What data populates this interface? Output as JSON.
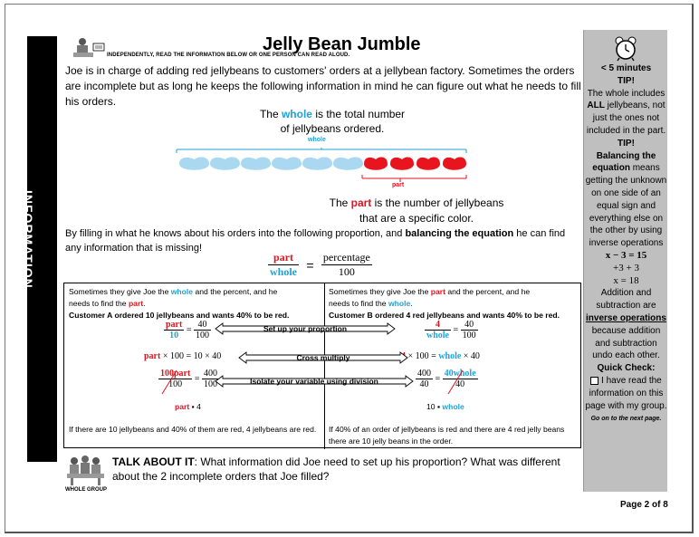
{
  "side_label": "INFORMATION",
  "title": "Jelly Bean Jumble",
  "instruction": "INDEPENDENTLY, READ THE INFORMATION BELOW OR ONE PERSON CAN READ ALOUD.",
  "intro": "Joe is in charge of adding red jellybeans to customers' orders at a jellybean factory.  Sometimes the orders are incomplete but as long he keeps the following information in mind he can figure out what he needs to fill his orders.",
  "whole_def": {
    "pre": "The ",
    "word": "whole",
    "post1": " is the total number",
    "line2": "of jellybeans ordered."
  },
  "bean_labels": {
    "whole": "whole",
    "part": "part"
  },
  "beans": {
    "blue_count": 6,
    "red_count": 4,
    "blue_color": "#a9d8f0",
    "red_color": "#e8141e"
  },
  "part_def": {
    "pre": "The ",
    "word": "part",
    "post1": " is the number of jellybeans",
    "line2": "that are a specific color."
  },
  "fill": {
    "pre": "By filling in what he knows about his orders into the following proportion, and ",
    "bold": "balancing the equation",
    "post": " he can find any information that is missing!"
  },
  "proportion": {
    "part": "part",
    "whole": "whole",
    "percentage": "percentage",
    "hundred": "100",
    "equals": "="
  },
  "left_box": {
    "line1_pre": "Sometimes they give Joe the ",
    "line1_word": "whole",
    "line1_post": " and the percent, and he",
    "line2_pre": "needs to find the ",
    "line2_word": "part",
    "line2_post": ".",
    "customer": "Customer A ordered 10 jellybeans and wants 40% to be red.",
    "eq1_num": "part",
    "eq1_den": "10",
    "eq1_num2": "40",
    "eq1_den2": "100",
    "eq2_a": "part",
    "eq2_b": " × 100 = 10  × 40",
    "eq3_num": "100part",
    "eq3_den": "100",
    "eq3_num2": "400",
    "eq3_den2": "100",
    "result_a": "part",
    "result_b": " ▪ 4",
    "conclusion": "If there are 10 jellybeans and 40% of them are red, 4 jellybeans are red."
  },
  "right_box": {
    "line1_pre": "Sometimes they give Joe the ",
    "line1_word": "part",
    "line1_post": " and the percent, and he",
    "line2_pre": "needs to find the ",
    "line2_word": "whole",
    "line2_post": ".",
    "customer": "Customer B ordered 4 red jellybeans and wants 40% to be red.",
    "eq1_num": "4",
    "eq1_den": "whole",
    "eq1_num2": "40",
    "eq1_den2": "100",
    "eq2_a": "4",
    "eq2_b": " × 100 = ",
    "eq2_c": "whole",
    "eq2_d": "  × 40",
    "eq3_num": "400",
    "eq3_den": "40",
    "eq3_num2": "40whole",
    "eq3_den2": "40",
    "result_a": "10 ▪ ",
    "result_b": "whole",
    "conclusion": "If 40% of an order of jellybeans is red and there are 4 red jelly beans there are 10 jelly beans in the order."
  },
  "arrows": {
    "a1": "Set up your proportion",
    "a2": "Cross multiply",
    "a3": "Isolate your variable using division"
  },
  "talk": {
    "bold": "TALK ABOUT IT",
    "text": ": What information did Joe need to set up his proportion?  What was different about the 2 incomplete orders that Joe filled?"
  },
  "whole_group": "WHOLE GROUP",
  "sidebar": {
    "time": "< 5 minutes",
    "tip1_head": "TIP!",
    "tip1_a": "The whole includes ",
    "tip1_b": "ALL",
    "tip1_c": " jellybeans, not just the ones not included in the part.",
    "tip2_head": "TIP!",
    "tip2_bold": "Balancing the equation",
    "tip2_rest": " means getting the unknown on one side of an equal sign and everything else on the other by using inverse operations",
    "eq1": "x − 3 = 15",
    "eq2": "+3  + 3",
    "eq3": "x = 18",
    "ops1": "Addition and subtraction are ",
    "ops_ul": "inverse operations",
    "ops2": " because addition and subtraction undo each other.",
    "check_head": "Quick Check:",
    "check_text": "I have read the information on this page with my group.",
    "next": "Go on to the next page."
  },
  "page": "Page 2 of 8"
}
